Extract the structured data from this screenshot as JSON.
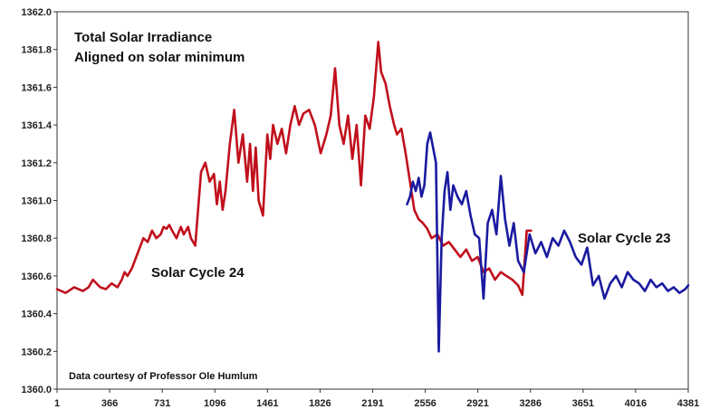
{
  "chart_data": {
    "type": "line",
    "title_lines": [
      "Total Solar Irradiance",
      "Aligned on solar minimum"
    ],
    "credit": "Data courtesy of Professor Ole Humlum",
    "xlabel": "",
    "ylabel": "",
    "xlim": [
      1,
      4381
    ],
    "ylim": [
      1360.0,
      1362.0
    ],
    "x_ticks": [
      1,
      366,
      731,
      1096,
      1461,
      1826,
      2191,
      2556,
      2921,
      3286,
      3651,
      4016,
      4381
    ],
    "y_ticks": [
      "1360.0",
      "1360.2",
      "1360.4",
      "1360.6",
      "1360.8",
      "1361.0",
      "1361.2",
      "1361.4",
      "1361.6",
      "1361.8",
      "1362.0"
    ],
    "grid": false,
    "series": [
      {
        "name": "Solar Cycle 24",
        "color": "#c0101c",
        "x": [
          1,
          60,
          120,
          180,
          220,
          250,
          300,
          340,
          380,
          420,
          450,
          470,
          490,
          520,
          560,
          600,
          630,
          660,
          690,
          720,
          740,
          760,
          780,
          800,
          830,
          860,
          880,
          910,
          930,
          960,
          1000,
          1030,
          1060,
          1090,
          1110,
          1130,
          1150,
          1170,
          1200,
          1230,
          1260,
          1290,
          1320,
          1340,
          1360,
          1380,
          1400,
          1430,
          1460,
          1480,
          1500,
          1530,
          1560,
          1590,
          1620,
          1650,
          1680,
          1710,
          1750,
          1790,
          1830,
          1870,
          1900,
          1930,
          1960,
          1990,
          2020,
          2050,
          2080,
          2110,
          2140,
          2170,
          2200,
          2230,
          2250,
          2280,
          2310,
          2340,
          2360,
          2390,
          2420,
          2450,
          2480,
          2510,
          2540,
          2570,
          2600,
          2640,
          2680,
          2720,
          2760,
          2800,
          2840,
          2880,
          2920,
          2960,
          3000,
          3040,
          3080,
          3120,
          3160,
          3200,
          3230,
          3260,
          3290
        ],
        "y": [
          1360.53,
          1360.51,
          1360.54,
          1360.52,
          1360.54,
          1360.58,
          1360.54,
          1360.53,
          1360.56,
          1360.54,
          1360.58,
          1360.62,
          1360.6,
          1360.64,
          1360.72,
          1360.8,
          1360.78,
          1360.84,
          1360.8,
          1360.82,
          1360.86,
          1360.85,
          1360.87,
          1360.84,
          1360.8,
          1360.86,
          1360.82,
          1360.86,
          1360.8,
          1360.76,
          1361.15,
          1361.2,
          1361.1,
          1361.14,
          1360.98,
          1361.1,
          1360.95,
          1361.05,
          1361.3,
          1361.48,
          1361.2,
          1361.35,
          1361.1,
          1361.3,
          1361.05,
          1361.28,
          1361.0,
          1360.92,
          1361.35,
          1361.22,
          1361.4,
          1361.3,
          1361.38,
          1361.25,
          1361.4,
          1361.5,
          1361.4,
          1361.46,
          1361.48,
          1361.4,
          1361.25,
          1361.35,
          1361.45,
          1361.7,
          1361.4,
          1361.3,
          1361.45,
          1361.22,
          1361.4,
          1361.08,
          1361.45,
          1361.38,
          1361.55,
          1361.84,
          1361.68,
          1361.62,
          1361.5,
          1361.4,
          1361.35,
          1361.38,
          1361.25,
          1361.1,
          1360.95,
          1360.9,
          1360.88,
          1360.85,
          1360.8,
          1360.82,
          1360.76,
          1360.78,
          1360.74,
          1360.7,
          1360.74,
          1360.68,
          1360.7,
          1360.62,
          1360.64,
          1360.58,
          1360.62,
          1360.6,
          1360.58,
          1360.55,
          1360.5,
          1360.84,
          1360.84
        ]
      },
      {
        "name": "Solar Cycle 23",
        "color": "#1a1aa0",
        "x": [
          2430,
          2450,
          2470,
          2490,
          2510,
          2530,
          2550,
          2570,
          2590,
          2610,
          2630,
          2650,
          2670,
          2690,
          2710,
          2730,
          2750,
          2780,
          2810,
          2840,
          2870,
          2900,
          2930,
          2960,
          2990,
          3020,
          3050,
          3080,
          3110,
          3140,
          3170,
          3200,
          3240,
          3280,
          3320,
          3360,
          3400,
          3440,
          3480,
          3520,
          3560,
          3600,
          3640,
          3680,
          3720,
          3760,
          3800,
          3840,
          3880,
          3920,
          3960,
          4000,
          4040,
          4080,
          4120,
          4160,
          4200,
          4240,
          4280,
          4320,
          4360,
          4381
        ],
        "y": [
          1360.98,
          1361.02,
          1361.1,
          1361.05,
          1361.12,
          1361.02,
          1361.08,
          1361.3,
          1361.36,
          1361.28,
          1361.2,
          1360.2,
          1360.8,
          1361.05,
          1361.15,
          1360.95,
          1361.08,
          1361.02,
          1360.98,
          1361.05,
          1360.92,
          1360.82,
          1360.8,
          1360.48,
          1360.88,
          1360.95,
          1360.82,
          1361.13,
          1360.9,
          1360.76,
          1360.88,
          1360.68,
          1360.62,
          1360.82,
          1360.72,
          1360.78,
          1360.7,
          1360.8,
          1360.76,
          1360.84,
          1360.78,
          1360.7,
          1360.66,
          1360.75,
          1360.55,
          1360.6,
          1360.48,
          1360.56,
          1360.6,
          1360.54,
          1360.62,
          1360.58,
          1360.56,
          1360.52,
          1360.58,
          1360.54,
          1360.56,
          1360.52,
          1360.54,
          1360.51,
          1360.53,
          1360.55
        ]
      }
    ],
    "annotations": [
      {
        "text": "Solar Cycle 24",
        "x": 650,
        "y": 1360.6
      },
      {
        "text": "Solar Cycle 23",
        "x": 3600,
        "y": 1360.8
      }
    ]
  }
}
